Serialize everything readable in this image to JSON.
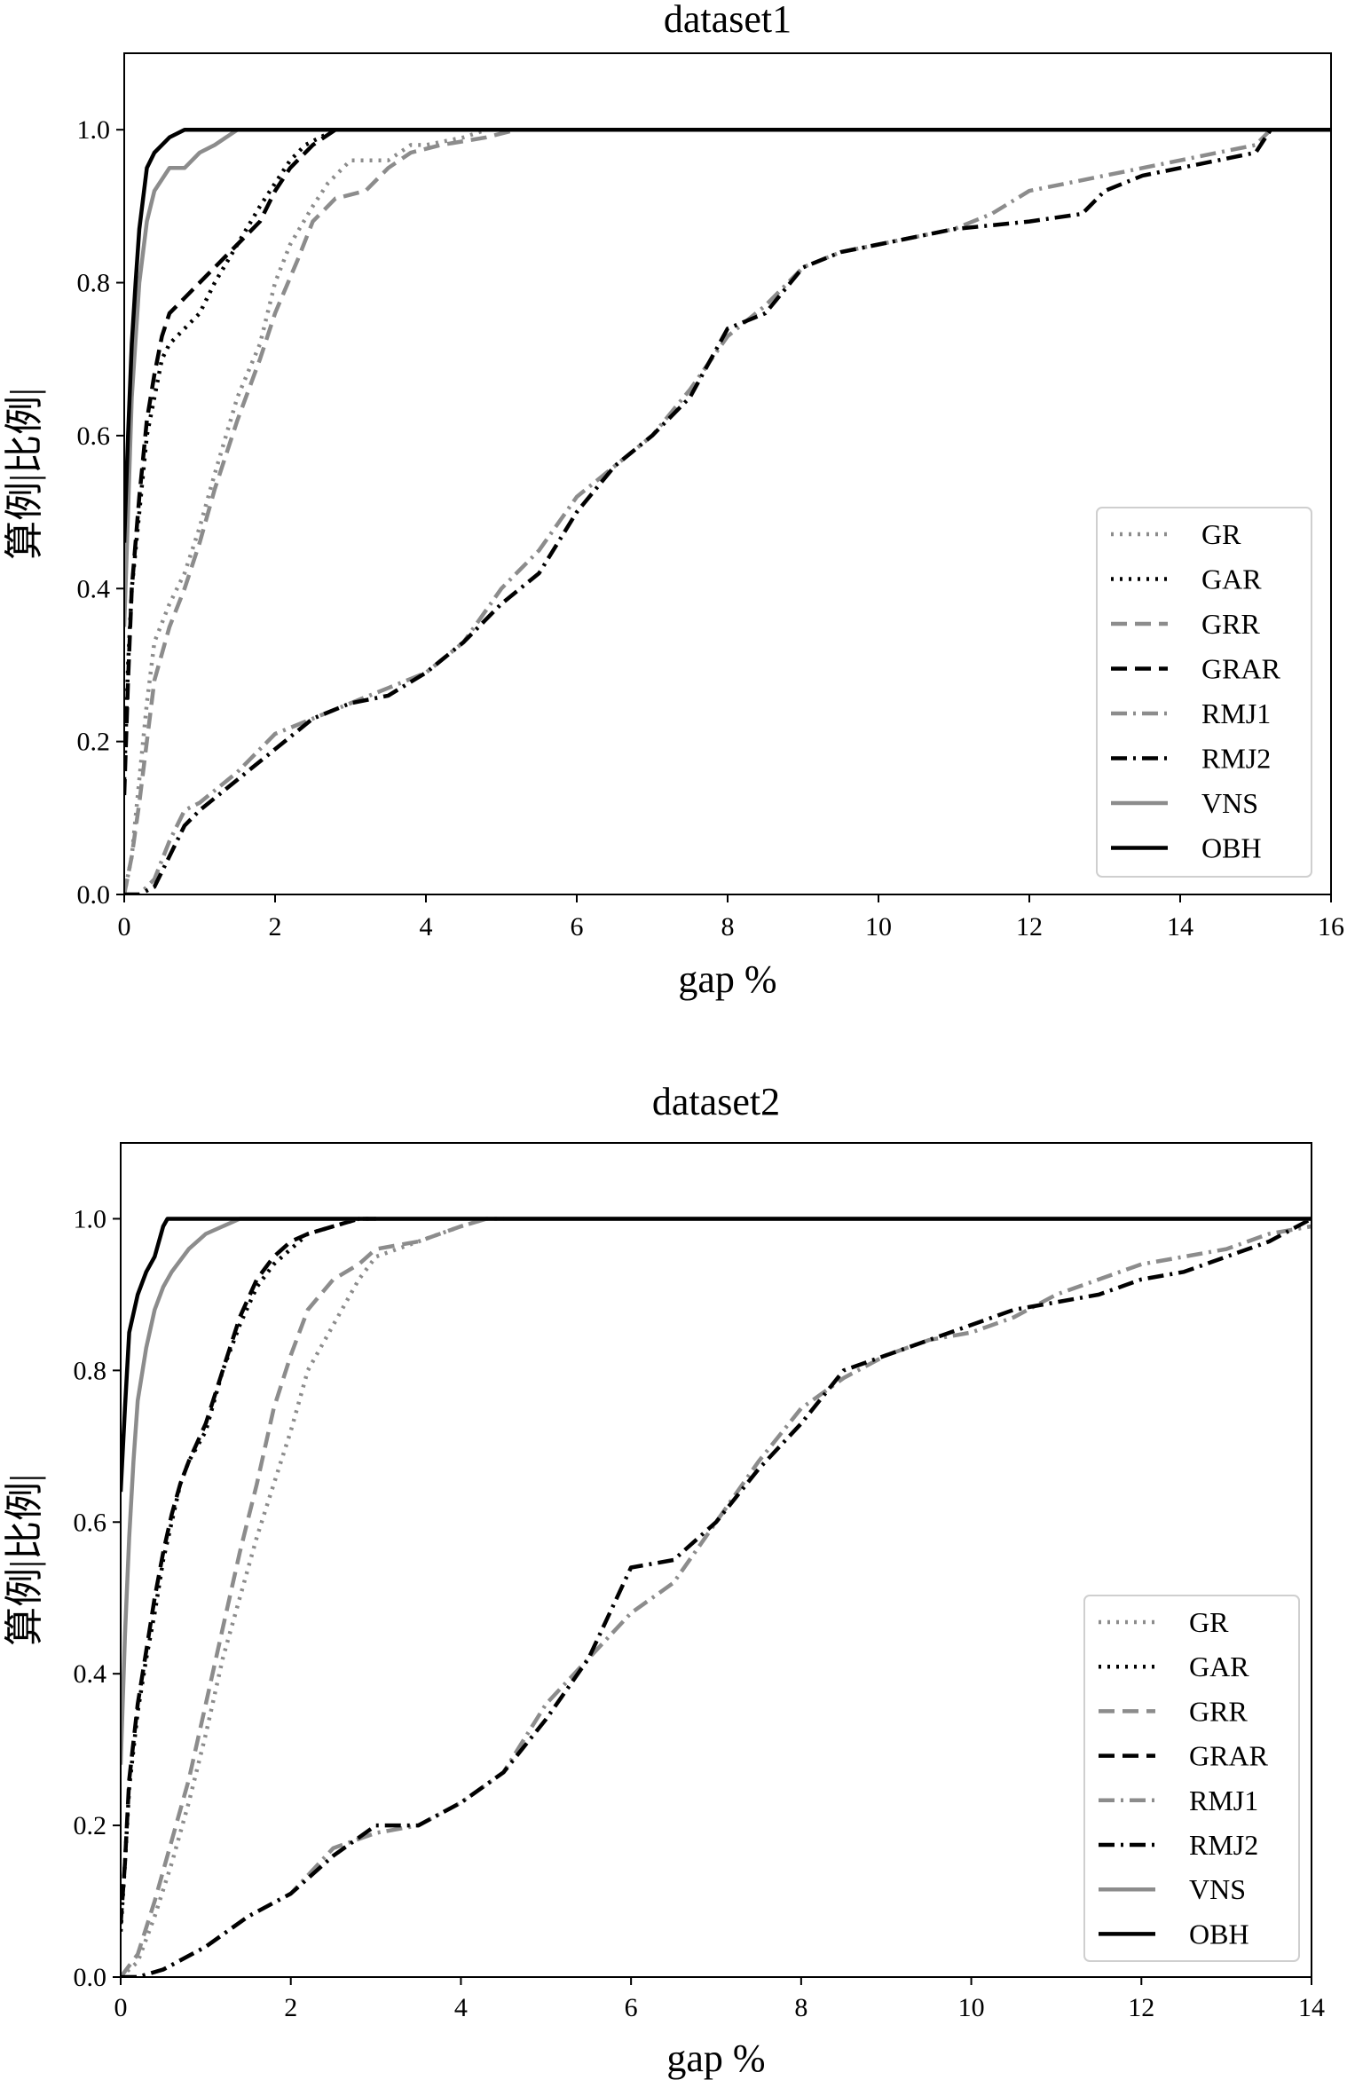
{
  "colors": {
    "black": "#000000",
    "gray": "#8c8c8c"
  },
  "legend_items": [
    {
      "key": "GR",
      "label": "GR",
      "color": "#8c8c8c",
      "dash": "dot"
    },
    {
      "key": "GAR",
      "label": "GAR",
      "color": "#000000",
      "dash": "dot"
    },
    {
      "key": "GRR",
      "label": "GRR",
      "color": "#8c8c8c",
      "dash": "dash"
    },
    {
      "key": "GRAR",
      "label": "GRAR",
      "color": "#000000",
      "dash": "dash"
    },
    {
      "key": "RMJ1",
      "label": "RMJ1",
      "color": "#8c8c8c",
      "dash": "dashdot"
    },
    {
      "key": "RMJ2",
      "label": "RMJ2",
      "color": "#000000",
      "dash": "dashdot"
    },
    {
      "key": "VNS",
      "label": "VNS",
      "color": "#8c8c8c",
      "dash": "solid"
    },
    {
      "key": "OBH",
      "label": "OBH",
      "color": "#000000",
      "dash": "solid"
    }
  ],
  "chart_data": [
    {
      "type": "line",
      "title": "dataset1",
      "xlabel": "gap %",
      "ylabel": "算例|比例|",
      "xlim": [
        0,
        16
      ],
      "ylim": [
        0,
        1.1
      ],
      "xticks": [
        0,
        2,
        4,
        6,
        8,
        10,
        12,
        14,
        16
      ],
      "yticks": [
        0.0,
        0.2,
        0.4,
        0.6,
        0.8,
        1.0
      ],
      "xticklabels": [
        "0",
        "2",
        "4",
        "6",
        "8",
        "10",
        "12",
        "14",
        "16"
      ],
      "yticklabels": [
        "0.0",
        "0.2",
        "0.4",
        "0.6",
        "0.8",
        "1.0"
      ],
      "legend_position": "lower-right",
      "series": [
        {
          "name": "GR",
          "x": [
            0,
            0.1,
            0.2,
            0.3,
            0.4,
            0.6,
            0.8,
            1.0,
            1.2,
            1.5,
            1.8,
            2.0,
            2.2,
            2.5,
            2.7,
            3.0,
            3.5,
            3.8,
            4.0,
            4.5,
            4.8,
            5.0
          ],
          "y": [
            0.0,
            0.05,
            0.15,
            0.25,
            0.33,
            0.38,
            0.42,
            0.48,
            0.55,
            0.65,
            0.72,
            0.8,
            0.85,
            0.9,
            0.93,
            0.96,
            0.96,
            0.98,
            0.98,
            0.99,
            1.0,
            1.0
          ]
        },
        {
          "name": "GAR",
          "x": [
            0,
            0.05,
            0.1,
            0.2,
            0.3,
            0.4,
            0.5,
            0.6,
            0.8,
            1.0,
            1.2,
            1.5,
            1.8,
            2.0,
            2.2,
            2.4,
            2.6,
            2.8
          ],
          "y": [
            0.15,
            0.3,
            0.4,
            0.5,
            0.6,
            0.65,
            0.7,
            0.72,
            0.74,
            0.76,
            0.8,
            0.85,
            0.9,
            0.93,
            0.96,
            0.98,
            0.99,
            1.0
          ]
        },
        {
          "name": "GRR",
          "x": [
            0,
            0.1,
            0.2,
            0.3,
            0.4,
            0.6,
            0.8,
            1.0,
            1.2,
            1.5,
            1.8,
            2.0,
            2.3,
            2.5,
            2.8,
            3.2,
            3.5,
            3.8,
            4.2,
            4.8,
            5.2
          ],
          "y": [
            0.0,
            0.05,
            0.12,
            0.2,
            0.28,
            0.35,
            0.4,
            0.46,
            0.53,
            0.62,
            0.7,
            0.76,
            0.83,
            0.88,
            0.91,
            0.92,
            0.95,
            0.97,
            0.98,
            0.99,
            1.0
          ]
        },
        {
          "name": "GRAR",
          "x": [
            0,
            0.05,
            0.1,
            0.2,
            0.3,
            0.4,
            0.5,
            0.6,
            0.8,
            1.0,
            1.2,
            1.5,
            1.8,
            2.0,
            2.2,
            2.5,
            2.8
          ],
          "y": [
            0.13,
            0.28,
            0.4,
            0.52,
            0.62,
            0.68,
            0.73,
            0.76,
            0.78,
            0.8,
            0.82,
            0.85,
            0.88,
            0.92,
            0.95,
            0.98,
            1.0
          ]
        },
        {
          "name": "RMJ1",
          "x": [
            0,
            0.2,
            0.4,
            0.6,
            0.8,
            1.0,
            1.5,
            2.0,
            2.5,
            3.0,
            3.5,
            4.0,
            4.5,
            5.0,
            5.5,
            6.0,
            6.5,
            7.0,
            7.5,
            8.0,
            8.5,
            9.0,
            9.5,
            10.0,
            11.0,
            11.5,
            12.0,
            12.5,
            13.0,
            13.5,
            14.0,
            14.5,
            15.0,
            15.2,
            15.8
          ],
          "y": [
            0.0,
            0.0,
            0.02,
            0.07,
            0.11,
            0.12,
            0.16,
            0.21,
            0.23,
            0.25,
            0.27,
            0.29,
            0.33,
            0.4,
            0.45,
            0.52,
            0.56,
            0.6,
            0.66,
            0.73,
            0.77,
            0.82,
            0.84,
            0.85,
            0.87,
            0.89,
            0.92,
            0.93,
            0.94,
            0.95,
            0.96,
            0.97,
            0.98,
            1.0,
            1.0
          ]
        },
        {
          "name": "RMJ2",
          "x": [
            0,
            0.2,
            0.4,
            0.6,
            0.8,
            1.0,
            1.5,
            2.0,
            2.5,
            3.0,
            3.5,
            4.0,
            4.5,
            5.0,
            5.5,
            6.0,
            6.5,
            7.0,
            7.5,
            8.0,
            8.5,
            9.0,
            9.5,
            10.0,
            11.0,
            12.0,
            12.7,
            13.0,
            13.5,
            14.0,
            14.5,
            15.0,
            15.2,
            15.8
          ],
          "y": [
            0.0,
            0.0,
            0.01,
            0.05,
            0.09,
            0.11,
            0.15,
            0.19,
            0.23,
            0.25,
            0.26,
            0.29,
            0.33,
            0.38,
            0.42,
            0.5,
            0.56,
            0.6,
            0.65,
            0.74,
            0.76,
            0.82,
            0.84,
            0.85,
            0.87,
            0.88,
            0.89,
            0.92,
            0.94,
            0.95,
            0.96,
            0.97,
            1.0,
            1.0
          ]
        },
        {
          "name": "VNS",
          "x": [
            0,
            0.05,
            0.1,
            0.2,
            0.3,
            0.4,
            0.6,
            0.8,
            1.0,
            1.2,
            1.5,
            16
          ],
          "y": [
            0.35,
            0.5,
            0.65,
            0.8,
            0.88,
            0.92,
            0.95,
            0.95,
            0.97,
            0.98,
            1.0,
            1.0
          ]
        },
        {
          "name": "OBH",
          "x": [
            0,
            0.05,
            0.1,
            0.15,
            0.2,
            0.3,
            0.4,
            0.5,
            0.6,
            0.7,
            0.8,
            16
          ],
          "y": [
            0.46,
            0.6,
            0.72,
            0.8,
            0.87,
            0.95,
            0.97,
            0.98,
            0.99,
            0.995,
            1.0,
            1.0
          ]
        }
      ]
    },
    {
      "type": "line",
      "title": "dataset2",
      "xlabel": "gap %",
      "ylabel": "算例|比例|",
      "xlim": [
        0,
        14
      ],
      "ylim": [
        0,
        1.1
      ],
      "xticks": [
        0,
        2,
        4,
        6,
        8,
        10,
        12,
        14
      ],
      "yticks": [
        0.0,
        0.2,
        0.4,
        0.6,
        0.8,
        1.0
      ],
      "xticklabels": [
        "0",
        "2",
        "4",
        "6",
        "8",
        "10",
        "12",
        "14"
      ],
      "yticklabels": [
        "0.0",
        "0.2",
        "0.4",
        "0.6",
        "0.8",
        "1.0"
      ],
      "legend_position": "lower-right",
      "series": [
        {
          "name": "GR",
          "x": [
            0,
            0.2,
            0.4,
            0.6,
            0.8,
            1.0,
            1.2,
            1.4,
            1.6,
            1.8,
            2.0,
            2.2,
            2.5,
            2.8,
            3.0,
            3.5,
            4.0,
            4.3,
            4.5
          ],
          "y": [
            0.0,
            0.02,
            0.08,
            0.15,
            0.23,
            0.32,
            0.42,
            0.5,
            0.58,
            0.65,
            0.72,
            0.8,
            0.86,
            0.92,
            0.95,
            0.97,
            0.99,
            1.0,
            1.0
          ]
        },
        {
          "name": "GAR",
          "x": [
            0,
            0.05,
            0.1,
            0.2,
            0.3,
            0.4,
            0.5,
            0.6,
            0.7,
            0.8,
            1.0,
            1.2,
            1.4,
            1.6,
            1.8,
            2.0,
            2.2,
            2.5,
            2.8,
            3.0
          ],
          "y": [
            0.06,
            0.15,
            0.25,
            0.35,
            0.42,
            0.48,
            0.55,
            0.6,
            0.65,
            0.68,
            0.72,
            0.8,
            0.86,
            0.91,
            0.94,
            0.96,
            0.98,
            0.99,
            1.0,
            1.0
          ]
        },
        {
          "name": "GRR",
          "x": [
            0,
            0.2,
            0.4,
            0.6,
            0.8,
            1.0,
            1.2,
            1.4,
            1.6,
            1.8,
            2.0,
            2.2,
            2.5,
            2.8,
            3.0,
            3.5,
            4.0,
            4.3
          ],
          "y": [
            0.0,
            0.03,
            0.1,
            0.18,
            0.26,
            0.36,
            0.46,
            0.56,
            0.65,
            0.75,
            0.82,
            0.88,
            0.92,
            0.94,
            0.96,
            0.97,
            0.99,
            1.0
          ]
        },
        {
          "name": "GRAR",
          "x": [
            0,
            0.05,
            0.1,
            0.2,
            0.3,
            0.4,
            0.5,
            0.6,
            0.7,
            0.8,
            1.0,
            1.2,
            1.4,
            1.6,
            1.8,
            2.0,
            2.2,
            2.5,
            2.8,
            3.0
          ],
          "y": [
            0.07,
            0.15,
            0.26,
            0.36,
            0.43,
            0.5,
            0.56,
            0.61,
            0.65,
            0.68,
            0.73,
            0.8,
            0.87,
            0.92,
            0.95,
            0.97,
            0.98,
            0.99,
            1.0,
            1.0
          ]
        },
        {
          "name": "RMJ1",
          "x": [
            0,
            0.2,
            0.5,
            1.0,
            1.5,
            2.0,
            2.5,
            3.0,
            3.5,
            4.0,
            4.5,
            5.0,
            5.5,
            6.0,
            6.5,
            7.0,
            7.5,
            8.0,
            8.5,
            9.0,
            9.5,
            10.0,
            10.5,
            11.0,
            11.5,
            12.0,
            12.5,
            13.0,
            13.5,
            14.0
          ],
          "y": [
            0.0,
            0.0,
            0.01,
            0.04,
            0.08,
            0.11,
            0.17,
            0.19,
            0.2,
            0.23,
            0.27,
            0.36,
            0.42,
            0.48,
            0.52,
            0.6,
            0.68,
            0.75,
            0.79,
            0.82,
            0.84,
            0.85,
            0.87,
            0.9,
            0.92,
            0.94,
            0.95,
            0.96,
            0.98,
            0.99
          ]
        },
        {
          "name": "RMJ2",
          "x": [
            0,
            0.2,
            0.5,
            1.0,
            1.5,
            2.0,
            2.5,
            3.0,
            3.5,
            4.0,
            4.5,
            5.0,
            5.5,
            6.0,
            6.5,
            7.0,
            7.5,
            8.0,
            8.5,
            9.0,
            9.5,
            10.0,
            10.5,
            11.0,
            11.5,
            12.0,
            12.5,
            13.0,
            13.5,
            14.0
          ],
          "y": [
            0.0,
            0.0,
            0.01,
            0.04,
            0.08,
            0.11,
            0.16,
            0.2,
            0.2,
            0.23,
            0.27,
            0.34,
            0.42,
            0.54,
            0.55,
            0.6,
            0.67,
            0.73,
            0.8,
            0.82,
            0.84,
            0.86,
            0.88,
            0.89,
            0.9,
            0.92,
            0.93,
            0.95,
            0.97,
            1.0
          ]
        },
        {
          "name": "VNS",
          "x": [
            0,
            0.05,
            0.1,
            0.15,
            0.2,
            0.3,
            0.4,
            0.5,
            0.6,
            0.8,
            1.0,
            1.2,
            1.4,
            14
          ],
          "y": [
            0.28,
            0.45,
            0.58,
            0.68,
            0.76,
            0.83,
            0.88,
            0.91,
            0.93,
            0.96,
            0.98,
            0.99,
            1.0,
            1.0
          ]
        },
        {
          "name": "OBH",
          "x": [
            0,
            0.05,
            0.1,
            0.2,
            0.3,
            0.4,
            0.5,
            0.55,
            14
          ],
          "y": [
            0.64,
            0.75,
            0.85,
            0.9,
            0.93,
            0.95,
            0.99,
            1.0,
            1.0
          ]
        }
      ]
    }
  ]
}
